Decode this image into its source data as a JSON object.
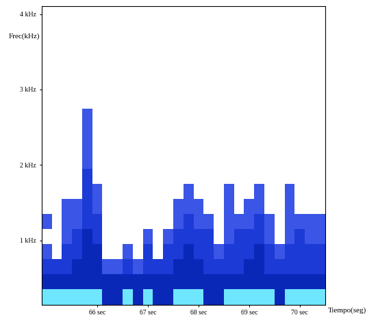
{
  "chart_data": {
    "type": "spectrogram",
    "x_label": "Tiempo(seg)",
    "y_label": "Frec(kHz)",
    "xlim": [
      64.9,
      70.5
    ],
    "ylim": [
      0.15,
      4.1
    ],
    "xticks": [
      {
        "value": 66,
        "label": "66 sec"
      },
      {
        "value": 67,
        "label": "67 sec"
      },
      {
        "value": 68,
        "label": "68 sec"
      },
      {
        "value": 69,
        "label": "69 sec"
      },
      {
        "value": 70,
        "label": "70 sec"
      }
    ],
    "yticks": [
      {
        "value": 1,
        "label": "1 kHz"
      },
      {
        "value": 2,
        "label": "2 kHz"
      },
      {
        "value": 3,
        "label": "3 kHz"
      },
      {
        "value": 4,
        "label": "4 kHz"
      }
    ],
    "grid": false,
    "time_edges": [
      64.9,
      65.1,
      65.3,
      65.5,
      65.7,
      65.9,
      66.1,
      66.3,
      66.5,
      66.7,
      66.9,
      67.1,
      67.3,
      67.5,
      67.7,
      67.9,
      68.1,
      68.3,
      68.5,
      68.7,
      68.9,
      69.1,
      69.3,
      69.5,
      69.7,
      69.9,
      70.1,
      70.3,
      70.5
    ],
    "freq_edges": [
      0.15,
      0.35,
      0.55,
      0.75,
      0.95,
      1.15,
      1.35,
      1.55,
      1.75,
      1.95,
      2.15,
      2.35,
      2.55,
      2.75,
      2.95
    ],
    "value_range": [
      0,
      4
    ],
    "cells": [
      [
        4,
        4,
        4,
        4,
        4,
        4,
        3,
        3,
        4,
        3,
        4,
        3,
        3,
        4,
        4,
        4,
        3,
        3,
        4,
        4,
        4,
        4,
        4,
        3,
        4,
        4,
        4,
        4
      ],
      [
        3,
        3,
        3,
        3,
        3,
        3,
        3,
        3,
        3,
        3,
        3,
        3,
        3,
        3,
        3,
        3,
        3,
        3,
        3,
        3,
        3,
        3,
        3,
        3,
        3,
        3,
        3,
        3
      ],
      [
        2,
        2,
        2,
        3,
        3,
        3,
        1,
        1,
        2,
        1,
        2,
        2,
        2,
        3,
        3,
        3,
        2,
        2,
        2,
        2,
        3,
        3,
        2,
        2,
        2,
        2,
        2,
        2
      ],
      [
        1,
        0,
        2,
        2,
        3,
        3,
        0,
        0,
        1,
        0,
        2,
        0,
        2,
        2,
        3,
        2,
        2,
        1,
        2,
        2,
        2,
        3,
        2,
        1,
        2,
        2,
        2,
        2
      ],
      [
        0,
        0,
        1,
        2,
        3,
        2,
        0,
        0,
        0,
        0,
        1,
        0,
        1,
        2,
        2,
        2,
        2,
        0,
        1,
        2,
        2,
        2,
        1,
        0,
        1,
        2,
        1,
        1
      ],
      [
        1,
        0,
        1,
        1,
        2,
        2,
        0,
        0,
        0,
        0,
        0,
        0,
        0,
        1,
        2,
        1,
        1,
        0,
        1,
        1,
        1,
        2,
        1,
        0,
        1,
        1,
        1,
        1
      ],
      [
        0,
        0,
        1,
        1,
        2,
        1,
        0,
        0,
        0,
        0,
        0,
        0,
        0,
        1,
        1,
        1,
        0,
        0,
        1,
        0,
        1,
        1,
        0,
        0,
        1,
        0,
        0,
        0
      ],
      [
        0,
        0,
        0,
        0,
        2,
        1,
        0,
        0,
        0,
        0,
        0,
        0,
        0,
        0,
        1,
        0,
        0,
        0,
        1,
        0,
        0,
        1,
        0,
        0,
        1,
        0,
        0,
        0
      ],
      [
        0,
        0,
        0,
        0,
        2,
        0,
        0,
        0,
        0,
        0,
        0,
        0,
        0,
        0,
        0,
        0,
        0,
        0,
        0,
        0,
        0,
        0,
        0,
        0,
        0,
        0,
        0,
        0
      ],
      [
        0,
        0,
        0,
        0,
        1,
        0,
        0,
        0,
        0,
        0,
        0,
        0,
        0,
        0,
        0,
        0,
        0,
        0,
        0,
        0,
        0,
        0,
        0,
        0,
        0,
        0,
        0,
        0
      ],
      [
        0,
        0,
        0,
        0,
        1,
        0,
        0,
        0,
        0,
        0,
        0,
        0,
        0,
        0,
        0,
        0,
        0,
        0,
        0,
        0,
        0,
        0,
        0,
        0,
        0,
        0,
        0,
        0
      ],
      [
        0,
        0,
        0,
        0,
        1,
        0,
        0,
        0,
        0,
        0,
        0,
        0,
        0,
        0,
        0,
        0,
        0,
        0,
        0,
        0,
        0,
        0,
        0,
        0,
        0,
        0,
        0,
        0
      ],
      [
        0,
        0,
        0,
        0,
        1,
        0,
        0,
        0,
        0,
        0,
        0,
        0,
        0,
        0,
        0,
        0,
        0,
        0,
        0,
        0,
        0,
        0,
        0,
        0,
        0,
        0,
        0,
        0
      ],
      [
        0,
        0,
        0,
        0,
        0,
        0,
        0,
        0,
        0,
        0,
        0,
        0,
        0,
        0,
        0,
        0,
        0,
        0,
        0,
        0,
        0,
        0,
        0,
        0,
        0,
        0,
        0,
        0
      ]
    ]
  }
}
